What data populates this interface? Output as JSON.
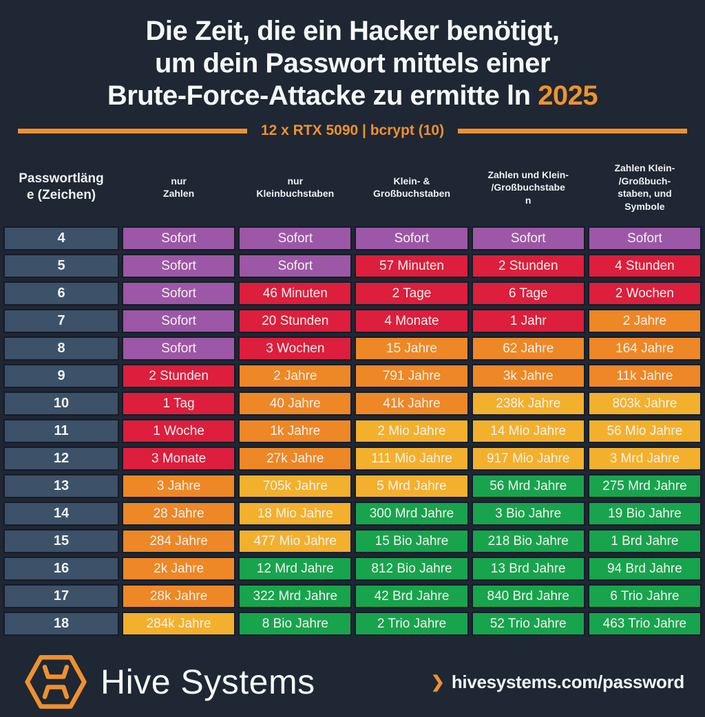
{
  "title": {
    "lines": [
      "Die Zeit, die ein Hacker benötigt,",
      "um dein Passwort mittels einer",
      "Brute-Force-Attacke zu ermitte ln"
    ],
    "year": "2025"
  },
  "subtitle": "12 x RTX 5090 | bcrypt (10)",
  "chart_data": {
    "type": "table",
    "columns": [
      "Passwortläng\ne (Zeichen)",
      "nur\nZahlen",
      "nur\nKleinbuchstaben",
      "Klein- &\nGroßbuchstaben",
      "Zahlen und Klein-\n/Großbuchstabe\nn",
      "Zahlen Klein-\n/Großbuch-\nstaben, und\nSymbole"
    ],
    "color_key": {
      "purple": "#9c57a6",
      "red": "#dd1e3c",
      "orange": "#ee8725",
      "yellow": "#f3b02c",
      "green": "#17a44d"
    },
    "rows": [
      {
        "length": "4",
        "cells": [
          {
            "text": "Sofort",
            "color": "purple"
          },
          {
            "text": "Sofort",
            "color": "purple"
          },
          {
            "text": "Sofort",
            "color": "purple"
          },
          {
            "text": "Sofort",
            "color": "purple"
          },
          {
            "text": "Sofort",
            "color": "purple"
          }
        ]
      },
      {
        "length": "5",
        "cells": [
          {
            "text": "Sofort",
            "color": "purple"
          },
          {
            "text": "Sofort",
            "color": "purple"
          },
          {
            "text": "57 Minuten",
            "color": "red"
          },
          {
            "text": "2 Stunden",
            "color": "red"
          },
          {
            "text": "4 Stunden",
            "color": "red"
          }
        ]
      },
      {
        "length": "6",
        "cells": [
          {
            "text": "Sofort",
            "color": "purple"
          },
          {
            "text": "46 Minuten",
            "color": "red"
          },
          {
            "text": "2 Tage",
            "color": "red"
          },
          {
            "text": "6 Tage",
            "color": "red"
          },
          {
            "text": "2 Wochen",
            "color": "red"
          }
        ]
      },
      {
        "length": "7",
        "cells": [
          {
            "text": "Sofort",
            "color": "purple"
          },
          {
            "text": "20 Stunden",
            "color": "red"
          },
          {
            "text": "4 Monate",
            "color": "red"
          },
          {
            "text": "1 Jahr",
            "color": "red"
          },
          {
            "text": "2 Jahre",
            "color": "orange"
          }
        ]
      },
      {
        "length": "8",
        "cells": [
          {
            "text": "Sofort",
            "color": "purple"
          },
          {
            "text": "3 Wochen",
            "color": "red"
          },
          {
            "text": "15 Jahre",
            "color": "orange"
          },
          {
            "text": "62 Jahre",
            "color": "orange"
          },
          {
            "text": "164 Jahre",
            "color": "orange"
          }
        ]
      },
      {
        "length": "9",
        "cells": [
          {
            "text": "2 Stunden",
            "color": "red"
          },
          {
            "text": "2 Jahre",
            "color": "orange"
          },
          {
            "text": "791 Jahre",
            "color": "orange"
          },
          {
            "text": "3k Jahre",
            "color": "orange"
          },
          {
            "text": "11k Jahre",
            "color": "orange"
          }
        ]
      },
      {
        "length": "10",
        "cells": [
          {
            "text": "1 Tag",
            "color": "red"
          },
          {
            "text": "40 Jahre",
            "color": "orange"
          },
          {
            "text": "41k Jahre",
            "color": "orange"
          },
          {
            "text": "238k Jahre",
            "color": "yellow"
          },
          {
            "text": "803k Jahre",
            "color": "yellow"
          }
        ]
      },
      {
        "length": "11",
        "cells": [
          {
            "text": "1 Woche",
            "color": "red"
          },
          {
            "text": "1k Jahre",
            "color": "orange"
          },
          {
            "text": "2 Mio Jahre",
            "color": "yellow"
          },
          {
            "text": "14 Mio Jahre",
            "color": "yellow"
          },
          {
            "text": "56 Mio Jahre",
            "color": "yellow"
          }
        ]
      },
      {
        "length": "12",
        "cells": [
          {
            "text": "3 Monate",
            "color": "red"
          },
          {
            "text": "27k Jahre",
            "color": "orange"
          },
          {
            "text": "111 Mio Jahre",
            "color": "yellow"
          },
          {
            "text": "917 Mio Jahre",
            "color": "yellow"
          },
          {
            "text": "3 Mrd Jahre",
            "color": "yellow"
          }
        ]
      },
      {
        "length": "13",
        "cells": [
          {
            "text": "3 Jahre",
            "color": "orange"
          },
          {
            "text": "705k Jahre",
            "color": "yellow"
          },
          {
            "text": "5 Mrd Jahre",
            "color": "yellow"
          },
          {
            "text": "56 Mrd Jahre",
            "color": "green"
          },
          {
            "text": "275 Mrd Jahre",
            "color": "green"
          }
        ]
      },
      {
        "length": "14",
        "cells": [
          {
            "text": "28 Jahre",
            "color": "orange"
          },
          {
            "text": "18 Mio Jahre",
            "color": "yellow"
          },
          {
            "text": "300 Mrd Jahre",
            "color": "green"
          },
          {
            "text": "3 Bio Jahre",
            "color": "green"
          },
          {
            "text": "19 Bio Jahre",
            "color": "green"
          }
        ]
      },
      {
        "length": "15",
        "cells": [
          {
            "text": "284 Jahre",
            "color": "orange"
          },
          {
            "text": "477 Mio Jahre",
            "color": "yellow"
          },
          {
            "text": "15 Bio Jahre",
            "color": "green"
          },
          {
            "text": "218 Bio Jahre",
            "color": "green"
          },
          {
            "text": "1 Brd Jahre",
            "color": "green"
          }
        ]
      },
      {
        "length": "16",
        "cells": [
          {
            "text": "2k Jahre",
            "color": "orange"
          },
          {
            "text": "12 Mrd Jahre",
            "color": "green"
          },
          {
            "text": "812 Bio Jahre",
            "color": "green"
          },
          {
            "text": "13 Brd Jahre",
            "color": "green"
          },
          {
            "text": "94 Brd Jahre",
            "color": "green"
          }
        ]
      },
      {
        "length": "17",
        "cells": [
          {
            "text": "28k Jahre",
            "color": "orange"
          },
          {
            "text": "322 Mrd Jahre",
            "color": "green"
          },
          {
            "text": "42 Brd Jahre",
            "color": "green"
          },
          {
            "text": "840 Brd Jahre",
            "color": "green"
          },
          {
            "text": "6 Trio Jahre",
            "color": "green"
          }
        ]
      },
      {
        "length": "18",
        "cells": [
          {
            "text": "284k Jahre",
            "color": "yellow"
          },
          {
            "text": "8 Bio Jahre",
            "color": "green"
          },
          {
            "text": "2 Trio Jahre",
            "color": "green"
          },
          {
            "text": "52 Trio Jahre",
            "color": "green"
          },
          {
            "text": "463 Trio Jahre",
            "color": "green"
          }
        ]
      }
    ]
  },
  "footer": {
    "brand": "Hive Systems",
    "chevron": "❯",
    "url": "hivesystems.com/password"
  },
  "theme": {
    "background": "#1e2733",
    "accent_orange": "#ef9030",
    "row_label_bg": "#3d5168",
    "cell_border": "#151c28"
  }
}
